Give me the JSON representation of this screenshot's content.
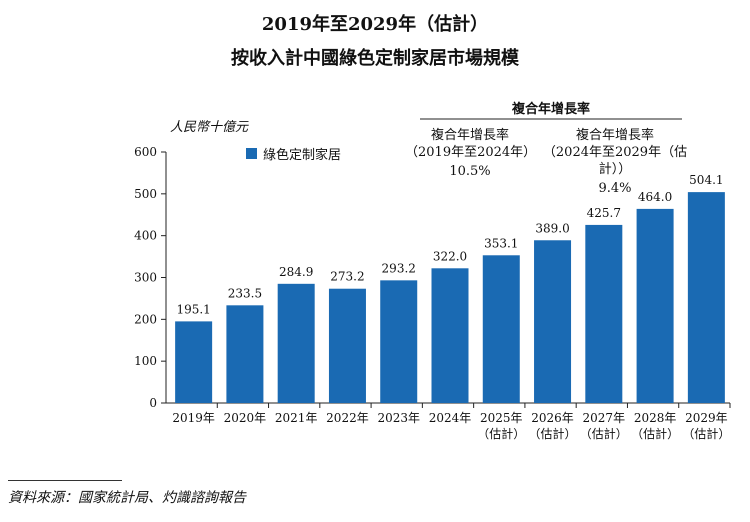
{
  "title_line1": "2019年至2029年（估計）",
  "title_line2": "按收入計中國綠色定制家居市場規模",
  "unit_label": "人民幣十億元",
  "legend_label": "綠色定制家居",
  "cagr": {
    "heading": "複合年增長率",
    "col1": {
      "label": "複合年增長率",
      "period": "（2019年至2024年）",
      "value": "10.5%"
    },
    "col2": {
      "label": "複合年增長率",
      "period": "（2024年至2029年（估計））",
      "value": "9.4%"
    }
  },
  "source": "資料來源：國家統計局、灼識諮詢報告",
  "colors": {
    "bar": "#1a6ab3"
  },
  "chart_data": {
    "type": "bar",
    "title": "2019年至2029年（估計） 按收入計中國綠色定制家居市場規模",
    "ylabel": "人民幣十億元",
    "ylim": [
      0,
      600
    ],
    "yticks": [
      0,
      100,
      200,
      300,
      400,
      500,
      600
    ],
    "categories": [
      [
        "2019年"
      ],
      [
        "2020年"
      ],
      [
        "2021年"
      ],
      [
        "2022年"
      ],
      [
        "2023年"
      ],
      [
        "2024年"
      ],
      [
        "2025年",
        "（估計）"
      ],
      [
        "2026年",
        "（估計）"
      ],
      [
        "2027年",
        "（估計）"
      ],
      [
        "2028年",
        "（估計）"
      ],
      [
        "2029年",
        "（估計）"
      ]
    ],
    "values": [
      195.1,
      233.5,
      284.9,
      273.2,
      293.2,
      322.0,
      353.1,
      389.0,
      425.7,
      464.0,
      504.1
    ],
    "value_labels": [
      "195.1",
      "233.5",
      "284.9",
      "273.2",
      "293.2",
      "322.0",
      "353.1",
      "389.0",
      "425.7",
      "464.0",
      "504.1"
    ],
    "series_name": "綠色定制家居"
  }
}
